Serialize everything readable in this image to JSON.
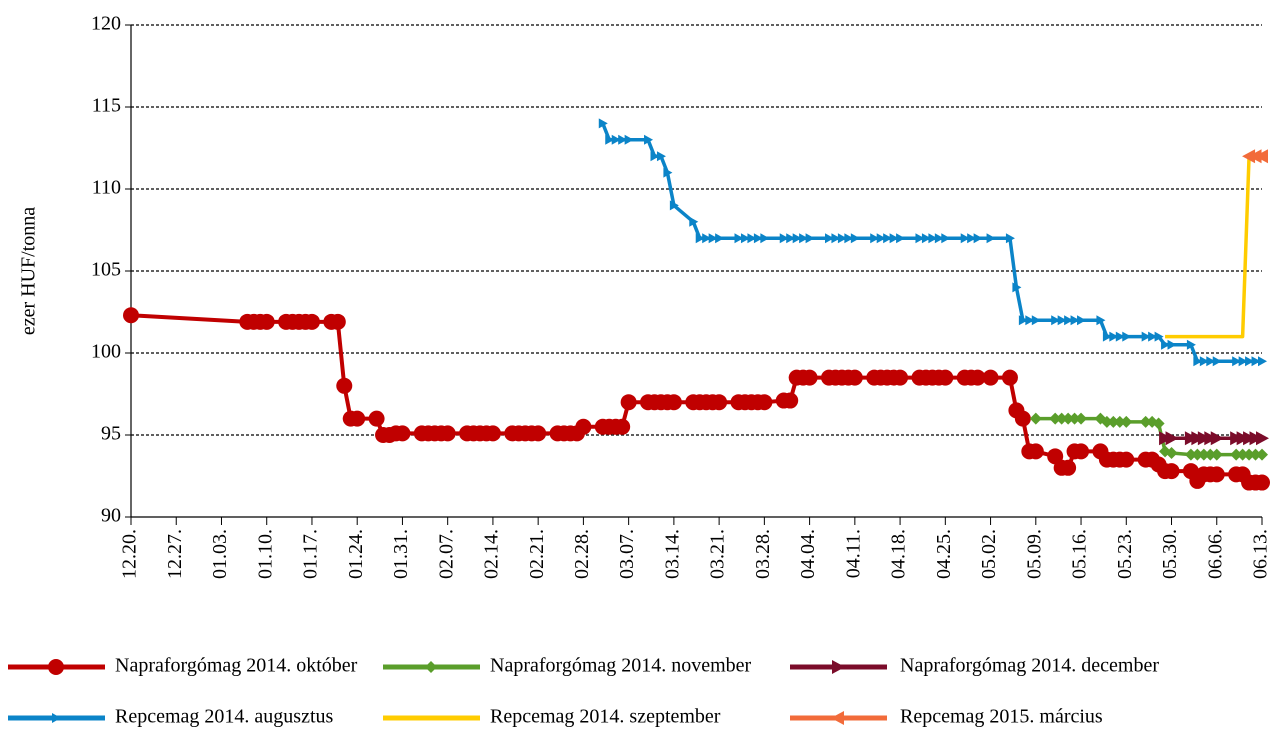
{
  "chart_data": {
    "type": "line",
    "y_label": "ezer HUF/tonna",
    "xlim": [
      "12.20.",
      "06.13."
    ],
    "xticks": [
      "12.20.",
      "12.27.",
      "01.03.",
      "01.10.",
      "01.17.",
      "01.24.",
      "01.31.",
      "02.07.",
      "02.14.",
      "02.21.",
      "02.28.",
      "03.07.",
      "03.14.",
      "03.21.",
      "03.28.",
      "04.04.",
      "04.11.",
      "04.18.",
      "04.25.",
      "05.02.",
      "05.09.",
      "05.16.",
      "05.23.",
      "05.30.",
      "06.06.",
      "06.13."
    ],
    "ylim": [
      90,
      120
    ],
    "yticks": [
      90,
      95,
      100,
      105,
      110,
      115,
      120
    ],
    "grid": true,
    "legend": "bottom",
    "series": [
      {
        "name": "Napraforgómag 2014. október",
        "color": "#c00000",
        "marker": "circle",
        "x": [
          "12.20.",
          "01.07.",
          "01.08.",
          "01.09.",
          "01.10.",
          "01.13.",
          "01.14.",
          "01.15.",
          "01.16.",
          "01.17.",
          "01.20.",
          "01.21.",
          "01.22.",
          "01.23.",
          "01.24.",
          "01.27.",
          "01.28.",
          "01.29.",
          "01.30.",
          "01.31.",
          "02.03.",
          "02.04.",
          "02.05.",
          "02.06.",
          "02.07.",
          "02.10.",
          "02.11.",
          "02.12.",
          "02.13.",
          "02.14.",
          "02.17.",
          "02.18.",
          "02.19.",
          "02.20.",
          "02.21.",
          "02.24.",
          "02.25.",
          "02.26.",
          "02.27.",
          "02.28.",
          "03.03.",
          "03.04.",
          "03.05.",
          "03.06.",
          "03.07.",
          "03.10.",
          "03.11.",
          "03.12.",
          "03.13.",
          "03.14.",
          "03.17.",
          "03.18.",
          "03.19.",
          "03.20.",
          "03.21.",
          "03.24.",
          "03.25.",
          "03.26.",
          "03.27.",
          "03.28.",
          "03.31.",
          "04.01.",
          "04.02.",
          "04.03.",
          "04.04.",
          "04.07.",
          "04.08.",
          "04.09.",
          "04.10.",
          "04.11.",
          "04.14.",
          "04.15.",
          "04.16.",
          "04.17.",
          "04.18.",
          "04.21.",
          "04.22.",
          "04.23.",
          "04.24.",
          "04.25.",
          "04.28.",
          "04.29.",
          "04.30.",
          "05.02.",
          "05.05.",
          "05.06.",
          "05.07.",
          "05.08.",
          "05.09.",
          "05.12.",
          "05.13.",
          "05.14.",
          "05.15.",
          "05.16.",
          "05.19.",
          "05.20.",
          "05.21.",
          "05.22.",
          "05.23.",
          "05.26.",
          "05.27.",
          "05.28.",
          "05.29.",
          "05.30.",
          "06.02.",
          "06.03.",
          "06.04.",
          "06.05.",
          "06.06.",
          "06.09.",
          "06.10.",
          "06.11.",
          "06.12.",
          "06.13."
        ],
        "values": [
          102.3,
          101.9,
          101.9,
          101.9,
          101.9,
          101.9,
          101.9,
          101.9,
          101.9,
          101.9,
          101.9,
          101.9,
          98,
          96,
          96,
          96,
          95,
          95,
          95.1,
          95.1,
          95.1,
          95.1,
          95.1,
          95.1,
          95.1,
          95.1,
          95.1,
          95.1,
          95.1,
          95.1,
          95.1,
          95.1,
          95.1,
          95.1,
          95.1,
          95.1,
          95.1,
          95.1,
          95.1,
          95.5,
          95.5,
          95.5,
          95.5,
          95.5,
          97,
          97,
          97,
          97,
          97,
          97,
          97,
          97,
          97,
          97,
          97,
          97,
          97,
          97,
          97,
          97,
          97.1,
          97.1,
          98.5,
          98.5,
          98.5,
          98.5,
          98.5,
          98.5,
          98.5,
          98.5,
          98.5,
          98.5,
          98.5,
          98.5,
          98.5,
          98.5,
          98.5,
          98.5,
          98.5,
          98.5,
          98.5,
          98.5,
          98.5,
          98.5,
          98.5,
          96.5,
          96,
          94,
          94,
          93.7,
          93,
          93,
          94,
          94,
          94,
          93.5,
          93.5,
          93.5,
          93.5,
          93.5,
          93.5,
          93.2,
          92.8,
          92.8,
          92.8,
          92.2,
          92.6,
          92.6,
          92.6,
          92.6,
          92.6,
          92.1,
          92.1,
          92.1
        ]
      },
      {
        "name": "Napraforgómag 2014. november",
        "color": "#5a9e2b",
        "marker": "diamond",
        "x": [
          "05.09.",
          "05.12.",
          "05.13.",
          "05.14.",
          "05.15.",
          "05.16.",
          "05.19.",
          "05.20.",
          "05.21.",
          "05.22.",
          "05.23.",
          "05.26.",
          "05.27.",
          "05.28.",
          "05.29.",
          "05.30.",
          "06.02.",
          "06.03.",
          "06.04.",
          "06.05.",
          "06.06.",
          "06.09.",
          "06.10.",
          "06.11.",
          "06.12.",
          "06.13."
        ],
        "values": [
          96,
          96,
          96,
          96,
          96,
          96,
          96,
          95.8,
          95.8,
          95.8,
          95.8,
          95.8,
          95.8,
          95.7,
          94,
          93.9,
          93.8,
          93.8,
          93.8,
          93.8,
          93.8,
          93.8,
          93.8,
          93.8,
          93.8,
          93.8
        ]
      },
      {
        "name": "Napraforgómag 2014. december",
        "color": "#7b0c2a",
        "marker": "triangle-right",
        "x": [
          "05.29.",
          "05.30.",
          "06.02.",
          "06.03.",
          "06.04.",
          "06.05.",
          "06.06.",
          "06.09.",
          "06.10.",
          "06.11.",
          "06.12.",
          "06.13."
        ],
        "values": [
          94.8,
          94.8,
          94.8,
          94.8,
          94.8,
          94.8,
          94.8,
          94.8,
          94.8,
          94.8,
          94.8,
          94.8
        ]
      },
      {
        "name": "Repcemag 2014. augusztus",
        "color": "#0b84c8",
        "marker": "triangle-right-small",
        "x": [
          "03.03.",
          "03.04.",
          "03.05.",
          "03.06.",
          "03.07.",
          "03.10.",
          "03.11.",
          "03.12.",
          "03.13.",
          "03.14.",
          "03.17.",
          "03.18.",
          "03.19.",
          "03.20.",
          "03.21.",
          "03.24.",
          "03.25.",
          "03.26.",
          "03.27.",
          "03.28.",
          "03.31.",
          "04.01.",
          "04.02.",
          "04.03.",
          "04.04.",
          "04.07.",
          "04.08.",
          "04.09.",
          "04.10.",
          "04.11.",
          "04.14.",
          "04.15.",
          "04.16.",
          "04.17.",
          "04.18.",
          "04.21.",
          "04.22.",
          "04.23.",
          "04.24.",
          "04.25.",
          "04.28.",
          "04.29.",
          "04.30.",
          "05.02.",
          "05.05.",
          "05.06.",
          "05.07.",
          "05.08.",
          "05.09.",
          "05.12.",
          "05.13.",
          "05.14.",
          "05.15.",
          "05.16.",
          "05.19.",
          "05.20.",
          "05.21.",
          "05.22.",
          "05.23.",
          "05.26.",
          "05.27.",
          "05.28.",
          "05.29.",
          "05.30.",
          "06.02.",
          "06.03.",
          "06.04.",
          "06.05.",
          "06.06.",
          "06.09.",
          "06.10.",
          "06.11.",
          "06.12.",
          "06.13."
        ],
        "values": [
          114,
          113,
          113,
          113,
          113,
          113,
          112,
          112,
          111,
          109,
          108,
          107,
          107,
          107,
          107,
          107,
          107,
          107,
          107,
          107,
          107,
          107,
          107,
          107,
          107,
          107,
          107,
          107,
          107,
          107,
          107,
          107,
          107,
          107,
          107,
          107,
          107,
          107,
          107,
          107,
          107,
          107,
          107,
          107,
          107,
          104,
          102,
          102,
          102,
          102,
          102,
          102,
          102,
          102,
          102,
          101,
          101,
          101,
          101,
          101,
          101,
          101,
          100.5,
          100.5,
          100.5,
          99.5,
          99.5,
          99.5,
          99.5,
          99.5,
          99.5,
          99.5,
          99.5,
          99.5
        ]
      },
      {
        "name": "Repcemag 2014. szeptember",
        "color": "#ffcc00",
        "marker": "none",
        "x": [
          "05.29.",
          "05.30.",
          "06.02.",
          "06.03.",
          "06.04.",
          "06.05.",
          "06.06.",
          "06.09.",
          "06.10.",
          "06.11.",
          "06.12.",
          "06.13."
        ],
        "values": [
          101,
          101,
          101,
          101,
          101,
          101,
          101,
          101,
          101,
          112,
          112,
          112
        ]
      },
      {
        "name": "Repcemag 2015. március",
        "color": "#f26b3a",
        "marker": "triangle-left",
        "x": [
          "06.11.",
          "06.12.",
          "06.13."
        ],
        "values": [
          112,
          112,
          112
        ]
      }
    ]
  }
}
